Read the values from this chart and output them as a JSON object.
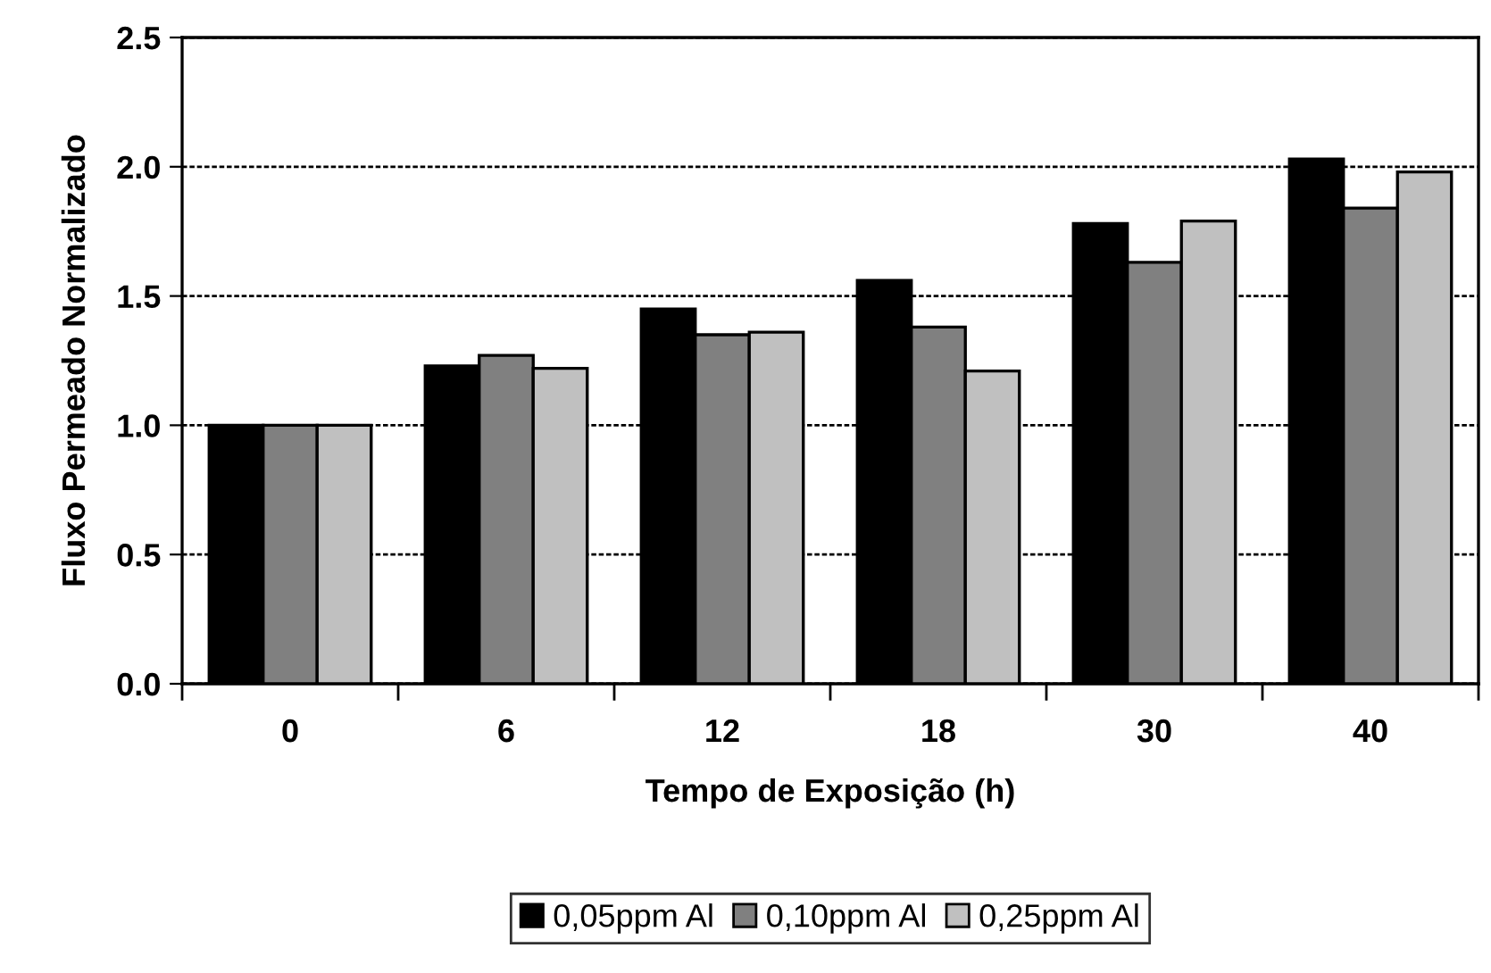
{
  "chart_data": {
    "type": "bar",
    "xlabel": "Tempo de Exposição (h)",
    "ylabel": "Fluxo Permeado Normalizado",
    "categories": [
      "0",
      "6",
      "12",
      "18",
      "30",
      "40"
    ],
    "series": [
      {
        "name": "0,05ppm Al",
        "color": "#000000",
        "values": [
          1.0,
          1.23,
          1.45,
          1.56,
          1.78,
          2.03
        ]
      },
      {
        "name": "0,10ppm Al",
        "color": "#808080",
        "values": [
          1.0,
          1.27,
          1.35,
          1.38,
          1.63,
          1.84
        ]
      },
      {
        "name": "0,25ppm Al",
        "color": "#c0c0c0",
        "values": [
          1.0,
          1.22,
          1.36,
          1.21,
          1.79,
          1.98
        ]
      }
    ],
    "ylim": [
      0,
      2.5
    ],
    "yticks": [
      {
        "value": 0,
        "label": "0.0"
      },
      {
        "value": 0.5,
        "label": "0.5"
      },
      {
        "value": 1,
        "label": "1.0"
      },
      {
        "value": 1.5,
        "label": "1.5"
      },
      {
        "value": 2,
        "label": "2.0"
      },
      {
        "value": 2.5,
        "label": "2.5"
      }
    ],
    "grid": "y",
    "legend": "bottom"
  }
}
